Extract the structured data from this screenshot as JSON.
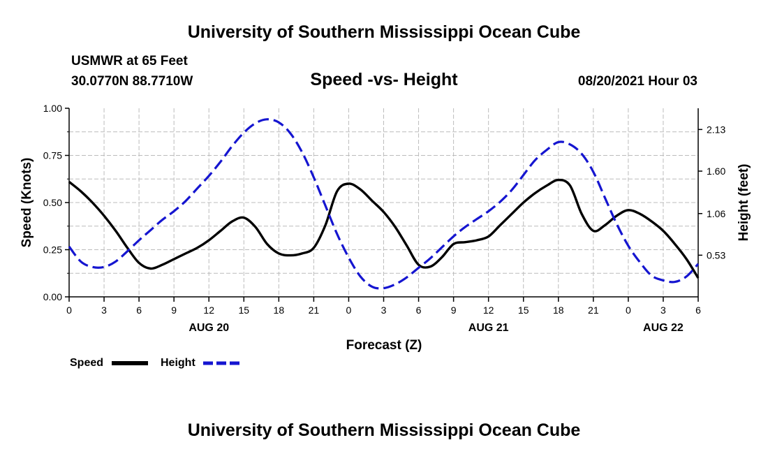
{
  "page": {
    "top_title": "University of Southern Mississippi Ocean Cube",
    "bottom_title": "University of Southern Mississippi Ocean Cube",
    "station": "USMWR at 65 Feet",
    "location": "30.0770N  88.7710W",
    "timestamp": "08/20/2021 Hour 03"
  },
  "chart_data": {
    "type": "line",
    "title": "Speed -vs- Height",
    "xlabel": "Forecast (Z)",
    "ylabel_left": "Speed (Knots)",
    "ylabel_right": "Height (feet)",
    "x_ticks": [
      0,
      3,
      6,
      9,
      12,
      15,
      18,
      21,
      24,
      27,
      30,
      33,
      36,
      39,
      42,
      45,
      48,
      51,
      54
    ],
    "x_tick_labels": [
      "0",
      "3",
      "6",
      "9",
      "12",
      "15",
      "18",
      "21",
      "0",
      "3",
      "6",
      "9",
      "12",
      "15",
      "18",
      "21",
      "0",
      "3",
      "6"
    ],
    "xlim": [
      0,
      54
    ],
    "date_labels": [
      {
        "label": "AUG 20",
        "hour": 12
      },
      {
        "label": "AUG 21",
        "hour": 36
      },
      {
        "label": "AUG 22",
        "hour": 51
      }
    ],
    "left_axis": {
      "ylim": [
        0,
        1.0
      ],
      "ticks": [
        0,
        0.25,
        0.5,
        0.75,
        1.0
      ],
      "tick_labels": [
        "0.00",
        "0.25",
        "0.50",
        "0.75",
        "1.00"
      ]
    },
    "right_axis": {
      "ylim": [
        0,
        2.4
      ],
      "ticks": [
        0.53,
        1.06,
        1.6,
        2.13
      ],
      "tick_labels": [
        "0.53",
        "1.06",
        "1.60",
        "2.13"
      ]
    },
    "grid": true,
    "legend": [
      {
        "name": "Speed",
        "color": "#000000",
        "style": "solid"
      },
      {
        "name": "Height",
        "color": "#1515d0",
        "style": "dashed"
      }
    ],
    "series": [
      {
        "name": "Speed",
        "axis": "left",
        "color": "#000000",
        "points": [
          [
            0,
            0.61
          ],
          [
            1,
            0.56
          ],
          [
            2,
            0.5
          ],
          [
            3,
            0.43
          ],
          [
            4,
            0.35
          ],
          [
            5,
            0.26
          ],
          [
            6,
            0.18
          ],
          [
            7,
            0.15
          ],
          [
            8,
            0.17
          ],
          [
            9,
            0.2
          ],
          [
            10,
            0.23
          ],
          [
            11,
            0.26
          ],
          [
            12,
            0.3
          ],
          [
            13,
            0.35
          ],
          [
            14,
            0.4
          ],
          [
            15,
            0.42
          ],
          [
            16,
            0.37
          ],
          [
            17,
            0.28
          ],
          [
            18,
            0.23
          ],
          [
            19,
            0.22
          ],
          [
            20,
            0.23
          ],
          [
            21,
            0.26
          ],
          [
            22,
            0.38
          ],
          [
            23,
            0.56
          ],
          [
            24,
            0.6
          ],
          [
            25,
            0.57
          ],
          [
            26,
            0.51
          ],
          [
            27,
            0.45
          ],
          [
            28,
            0.37
          ],
          [
            29,
            0.27
          ],
          [
            30,
            0.17
          ],
          [
            31,
            0.16
          ],
          [
            32,
            0.21
          ],
          [
            33,
            0.28
          ],
          [
            34,
            0.29
          ],
          [
            35,
            0.3
          ],
          [
            36,
            0.32
          ],
          [
            37,
            0.38
          ],
          [
            38,
            0.44
          ],
          [
            39,
            0.5
          ],
          [
            40,
            0.55
          ],
          [
            41,
            0.59
          ],
          [
            42,
            0.62
          ],
          [
            43,
            0.59
          ],
          [
            44,
            0.44
          ],
          [
            45,
            0.35
          ],
          [
            46,
            0.38
          ],
          [
            47,
            0.43
          ],
          [
            48,
            0.46
          ],
          [
            49,
            0.44
          ],
          [
            50,
            0.4
          ],
          [
            51,
            0.35
          ],
          [
            52,
            0.28
          ],
          [
            53,
            0.2
          ],
          [
            54,
            0.1
          ]
        ]
      },
      {
        "name": "Height",
        "axis": "right",
        "color": "#1515d0",
        "points": [
          [
            0,
            0.64
          ],
          [
            1,
            0.45
          ],
          [
            2,
            0.38
          ],
          [
            3,
            0.38
          ],
          [
            4,
            0.45
          ],
          [
            5,
            0.58
          ],
          [
            6,
            0.72
          ],
          [
            7,
            0.85
          ],
          [
            8,
            0.98
          ],
          [
            9,
            1.09
          ],
          [
            10,
            1.22
          ],
          [
            11,
            1.38
          ],
          [
            12,
            1.54
          ],
          [
            13,
            1.72
          ],
          [
            14,
            1.92
          ],
          [
            15,
            2.09
          ],
          [
            16,
            2.21
          ],
          [
            17,
            2.26
          ],
          [
            18,
            2.22
          ],
          [
            19,
            2.08
          ],
          [
            20,
            1.84
          ],
          [
            21,
            1.52
          ],
          [
            22,
            1.16
          ],
          [
            23,
            0.8
          ],
          [
            24,
            0.5
          ],
          [
            25,
            0.26
          ],
          [
            26,
            0.13
          ],
          [
            27,
            0.11
          ],
          [
            28,
            0.16
          ],
          [
            29,
            0.25
          ],
          [
            30,
            0.37
          ],
          [
            31,
            0.49
          ],
          [
            32,
            0.63
          ],
          [
            33,
            0.77
          ],
          [
            34,
            0.89
          ],
          [
            35,
            0.99
          ],
          [
            36,
            1.09
          ],
          [
            37,
            1.21
          ],
          [
            38,
            1.36
          ],
          [
            39,
            1.55
          ],
          [
            40,
            1.74
          ],
          [
            41,
            1.87
          ],
          [
            42,
            1.97
          ],
          [
            43,
            1.94
          ],
          [
            44,
            1.82
          ],
          [
            45,
            1.59
          ],
          [
            46,
            1.26
          ],
          [
            47,
            0.93
          ],
          [
            48,
            0.65
          ],
          [
            49,
            0.44
          ],
          [
            50,
            0.27
          ],
          [
            51,
            0.21
          ],
          [
            52,
            0.19
          ],
          [
            53,
            0.26
          ],
          [
            54,
            0.42
          ]
        ]
      }
    ]
  }
}
